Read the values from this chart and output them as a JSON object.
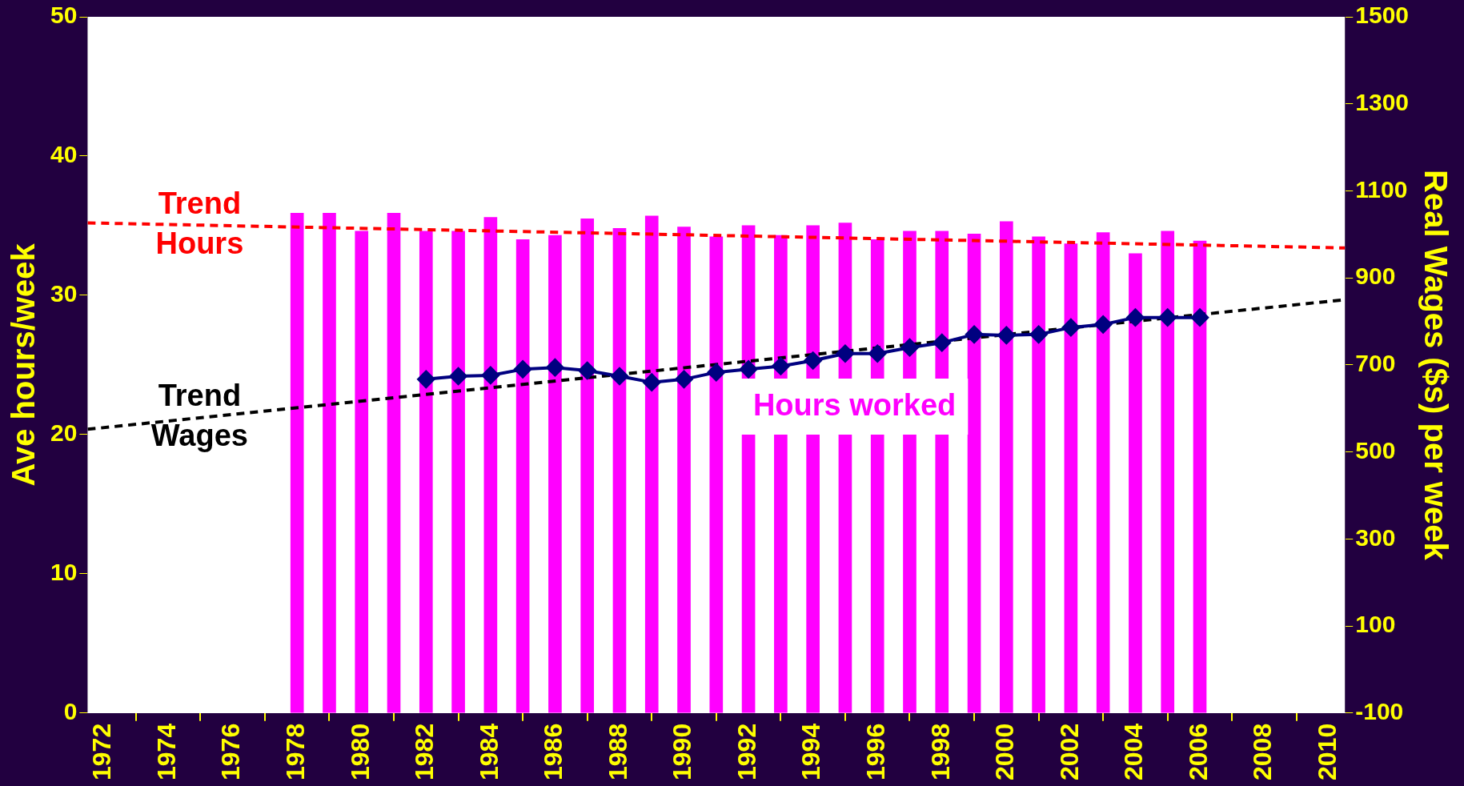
{
  "chart_data": {
    "type": "bar",
    "ylabel": "Ave hours/week",
    "y2label": "Real Wages ($s) per week",
    "xlim": [
      1971.5,
      2010.5
    ],
    "xticks": [
      1972,
      1974,
      1976,
      1978,
      1980,
      1982,
      1984,
      1986,
      1988,
      1990,
      1992,
      1994,
      1996,
      1998,
      2000,
      2002,
      2004,
      2006,
      2008,
      2010
    ],
    "ylim": [
      0,
      50
    ],
    "yticks": [
      0,
      10,
      20,
      30,
      40,
      50
    ],
    "y2lim": [
      -100,
      1500
    ],
    "y2ticks": [
      -100,
      100,
      300,
      500,
      700,
      900,
      1100,
      1300,
      1500
    ],
    "grid": false,
    "legend": false,
    "series": [
      {
        "name": "Hours worked",
        "color": "#ff00ff",
        "x": [
          1978,
          1979,
          1980,
          1981,
          1982,
          1983,
          1984,
          1985,
          1986,
          1987,
          1988,
          1989,
          1990,
          1991,
          1992,
          1993,
          1994,
          1995,
          1996,
          1997,
          1998,
          1999,
          2000,
          2001,
          2002,
          2003,
          2004,
          2005,
          2006
        ],
        "values": [
          35.9,
          35.9,
          34.6,
          35.9,
          34.6,
          34.6,
          35.6,
          34.0,
          34.3,
          35.5,
          34.8,
          35.7,
          34.9,
          34.2,
          35.0,
          34.3,
          35.0,
          35.2,
          34.0,
          34.6,
          34.6,
          34.4,
          35.3,
          34.2,
          33.7,
          34.5,
          33.0,
          34.6,
          33.9
        ]
      },
      {
        "type": "line",
        "axis": "y2",
        "color": "#000080",
        "marker": "diamond",
        "line_style": "solid",
        "x": [
          1982,
          1983,
          1984,
          1985,
          1986,
          1987,
          1988,
          1989,
          1990,
          1991,
          1992,
          1993,
          1994,
          1995,
          1996,
          1997,
          1998,
          1999,
          2000,
          2001,
          2002,
          2003,
          2004,
          2005,
          2006
        ],
        "values": [
          667,
          674,
          676,
          690,
          694,
          687,
          674,
          660,
          667,
          683,
          690,
          697,
          710,
          726,
          726,
          740,
          751,
          770,
          768,
          770,
          786,
          793,
          809,
          809,
          809
        ]
      },
      {
        "name": "Trend Hours",
        "type": "line",
        "color": "#ff0000",
        "marker": "none",
        "line_style": "dashed",
        "x": [
          1971.5,
          2010.5
        ],
        "values": [
          35.2,
          33.4
        ]
      },
      {
        "name": "Trend Wages",
        "type": "line",
        "axis": "y2",
        "color": "#000000",
        "marker": "none",
        "line_style": "dashed",
        "x": [
          1971.5,
          2010.5
        ],
        "values": [
          552,
          850
        ]
      }
    ]
  }
}
